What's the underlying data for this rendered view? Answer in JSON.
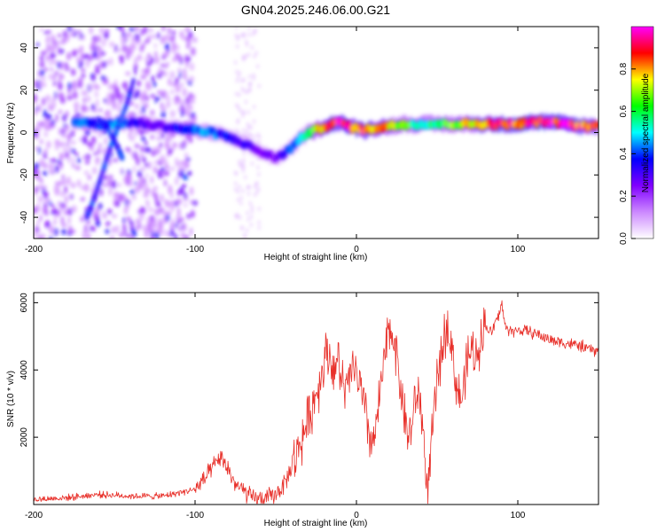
{
  "title": "GN04.2025.246.06.00.G21",
  "chart_data": [
    {
      "type": "heatmap",
      "title": "GN04.2025.246.06.00.G21",
      "xlabel": "Height of straight line (km)",
      "ylabel": "Frequency (Hz)",
      "xlim": [
        -200,
        150
      ],
      "ylim": [
        -50,
        50
      ],
      "x_ticks": [
        -200,
        -100,
        0,
        100
      ],
      "y_ticks": [
        -40,
        -20,
        0,
        20,
        40
      ],
      "ridge": {
        "x": [
          -170,
          -160,
          -150,
          -140,
          -130,
          -120,
          -110,
          -100,
          -90,
          -80,
          -70,
          -60,
          -50,
          -45,
          -40,
          -35,
          -30,
          -25,
          -20,
          -15,
          -10,
          -5,
          0,
          5,
          10,
          20,
          30,
          40,
          50,
          60,
          70,
          80,
          90,
          100,
          110,
          120,
          130,
          140,
          150
        ],
        "y": [
          5,
          4,
          4,
          5,
          4,
          3,
          2,
          1,
          0,
          -2,
          -5,
          -9,
          -12,
          -10,
          -7,
          -3,
          0,
          1,
          3,
          4,
          5,
          3,
          2,
          1,
          2,
          3,
          4,
          4,
          4,
          4,
          4,
          4,
          4,
          4,
          5,
          5,
          4,
          3,
          3
        ],
        "amplitude": [
          0.4,
          0.35,
          0.45,
          0.35,
          0.3,
          0.3,
          0.35,
          0.4,
          0.45,
          0.35,
          0.3,
          0.25,
          0.25,
          0.35,
          0.4,
          0.45,
          0.55,
          0.7,
          0.85,
          0.9,
          0.95,
          0.9,
          0.85,
          0.85,
          0.85,
          0.75,
          0.65,
          0.55,
          0.6,
          0.65,
          0.75,
          0.85,
          0.9,
          0.9,
          0.9,
          0.95,
          0.95,
          0.85,
          0.8
        ]
      },
      "branches": [
        {
          "x": [
            -167,
            -162,
            -157,
            -152,
            -147,
            -142,
            -138
          ],
          "y": [
            -40,
            -30,
            -18,
            -6,
            4,
            14,
            25
          ]
        },
        {
          "x": [
            -160,
            -155,
            -150,
            -145
          ],
          "y": [
            6,
            3,
            -4,
            -12
          ]
        }
      ],
      "colorbar": {
        "label": "Normalized spectral amplitude",
        "range": [
          0.0,
          1.0
        ],
        "ticks": [
          0.0,
          0.2,
          0.4,
          0.6,
          0.8
        ],
        "tick_labels": [
          "0.0",
          "0.2",
          "0.4",
          "0.6",
          "0.8"
        ]
      },
      "colormap": [
        "#ffffff",
        "#cc88ff",
        "#8000ff",
        "#0000ff",
        "#00ffff",
        "#00ff00",
        "#ffff00",
        "#ff0000",
        "#ff00ff"
      ]
    },
    {
      "type": "line",
      "xlabel": "Height of straight line (km)",
      "ylabel": "SNR (10 * v/v)",
      "xlim": [
        -200,
        150
      ],
      "ylim": [
        0,
        6300
      ],
      "x_ticks": [
        -200,
        -100,
        0,
        100
      ],
      "y_ticks": [
        2000,
        4000,
        6000
      ],
      "color": "#e8302a",
      "series": [
        {
          "name": "SNR",
          "x": [
            -200,
            -180,
            -160,
            -140,
            -120,
            -110,
            -100,
            -95,
            -90,
            -85,
            -80,
            -75,
            -70,
            -65,
            -60,
            -55,
            -50,
            -45,
            -40,
            -35,
            -30,
            -25,
            -22,
            -20,
            -18,
            -16,
            -14,
            -12,
            -10,
            -8,
            -6,
            -4,
            -2,
            0,
            2,
            4,
            6,
            8,
            10,
            12,
            14,
            16,
            18,
            20,
            22,
            24,
            26,
            28,
            30,
            32,
            34,
            36,
            38,
            40,
            42,
            44,
            46,
            48,
            50,
            52,
            54,
            56,
            58,
            60,
            62,
            64,
            66,
            68,
            70,
            72,
            74,
            76,
            78,
            80,
            82,
            84,
            86,
            88,
            90,
            92,
            94,
            96,
            98,
            100,
            105,
            110,
            115,
            120,
            125,
            130,
            135,
            140,
            145,
            150
          ],
          "y": [
            150,
            200,
            300,
            250,
            250,
            350,
            450,
            700,
            1000,
            1400,
            1100,
            600,
            400,
            200,
            150,
            200,
            300,
            600,
            1100,
            1800,
            2500,
            3300,
            3800,
            4300,
            4600,
            4300,
            4000,
            4300,
            3900,
            3500,
            3300,
            3800,
            4100,
            3900,
            3500,
            3100,
            2600,
            2100,
            1800,
            2200,
            3000,
            3800,
            4500,
            5100,
            5200,
            4800,
            4000,
            3300,
            2600,
            2000,
            2300,
            2900,
            3300,
            3000,
            1700,
            300,
            1500,
            2600,
            3600,
            4300,
            4800,
            5400,
            5000,
            4300,
            3600,
            3100,
            3300,
            4000,
            4500,
            4600,
            4300,
            4800,
            5200,
            5300,
            5200,
            5100,
            5400,
            5600,
            6000,
            5300,
            5200,
            5200,
            5100,
            5200,
            5150,
            5100,
            5000,
            4900,
            4850,
            4800,
            4750,
            4700,
            4600,
            4550
          ]
        }
      ]
    }
  ]
}
